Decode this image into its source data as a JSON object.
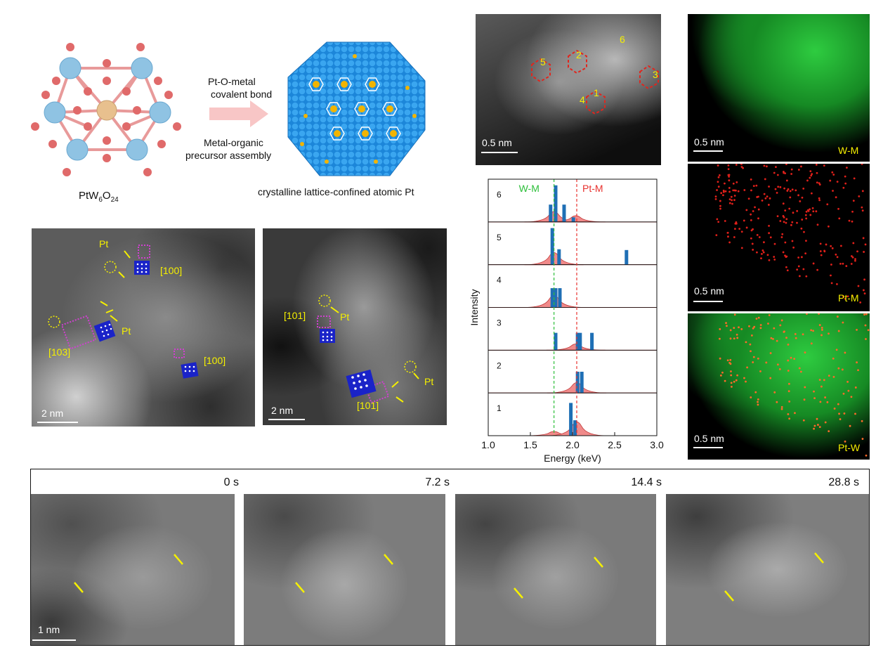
{
  "schematic": {
    "molecule_label_main": "PtW",
    "molecule_label_sub1": "6",
    "molecule_label_mid": "O",
    "molecule_label_sub2": "24",
    "arrow_top_line1": "Pt-O-metal",
    "arrow_top_line2": "covalent bond",
    "arrow_bottom_line1": "Metal-organic",
    "arrow_bottom_line2": "precursor assembly",
    "crystal_caption": "crystalline lattice-confined atomic Pt"
  },
  "haadf_left": {
    "pt_label_1": "Pt",
    "pt_label_2": "Pt",
    "zone_100_a": "[100]",
    "zone_103": "[103]",
    "zone_100_b": "[100]",
    "scale": "2 nm"
  },
  "haadf_mid": {
    "pt_label_1": "Pt",
    "pt_label_2": "Pt",
    "zone_101_a": "[101]",
    "zone_101_b": "[101]",
    "scale": "2 nm"
  },
  "stem_top": {
    "scale": "0.5 nm",
    "site_labels": [
      "1",
      "2",
      "3",
      "4",
      "5",
      "6"
    ]
  },
  "eds_maps": [
    {
      "label": "W-M",
      "scale": "0.5 nm"
    },
    {
      "label": "Pt-M",
      "scale": "0.5 nm"
    },
    {
      "label": "Pt-W",
      "scale": "0.5 nm"
    }
  ],
  "timelapse": {
    "times": [
      "0 s",
      "7.2 s",
      "14.4 s",
      "28.8 s"
    ],
    "scale": "1 nm"
  },
  "colors": {
    "wm_line": "#2dbf3a",
    "ptm_line": "#e8322f",
    "bar_fill": "#1f6fb5",
    "peak_fill": "#f08a8a",
    "annotation_yellow": "#f5f000",
    "lattice_magenta": "#d040d0",
    "lattice_blue": "#1a23c8"
  },
  "chart_data": {
    "type": "bar",
    "title": "",
    "xlabel": "Energy (keV)",
    "ylabel": "Intensity",
    "xlim": [
      1.0,
      3.0
    ],
    "xticks": [
      "1.0",
      "1.5",
      "2.0",
      "2.5",
      "3.0"
    ],
    "reference_lines": [
      {
        "name": "W-M",
        "x": 1.78
      },
      {
        "name": "Pt-M",
        "x": 2.05
      }
    ],
    "series": [
      {
        "name": "6",
        "bars": [
          [
            1.74,
            0.45
          ],
          [
            1.8,
            0.95
          ],
          [
            1.9,
            0.45
          ],
          [
            2.01,
            0.12
          ]
        ],
        "peaks": [
          [
            1.78,
            0.3
          ],
          [
            2.04,
            0.18
          ]
        ]
      },
      {
        "name": "5",
        "bars": [
          [
            1.76,
            0.95
          ],
          [
            1.84,
            0.4
          ],
          [
            2.64,
            0.38
          ]
        ],
        "peaks": [
          [
            1.78,
            0.35
          ]
        ]
      },
      {
        "name": "4",
        "bars": [
          [
            1.76,
            0.5
          ],
          [
            1.8,
            0.5
          ],
          [
            1.85,
            0.5
          ]
        ],
        "peaks": [
          [
            1.78,
            0.35
          ]
        ]
      },
      {
        "name": "3",
        "bars": [
          [
            1.8,
            0.45
          ],
          [
            2.06,
            0.45
          ],
          [
            2.09,
            0.45
          ],
          [
            2.23,
            0.45
          ]
        ],
        "peaks": [
          [
            2.04,
            0.18
          ]
        ]
      },
      {
        "name": "2",
        "bars": [
          [
            2.06,
            0.55
          ],
          [
            2.11,
            0.55
          ]
        ],
        "peaks": [
          [
            2.05,
            0.3
          ]
        ]
      },
      {
        "name": "1",
        "bars": [
          [
            1.98,
            0.85
          ],
          [
            2.03,
            0.4
          ]
        ],
        "peaks": [
          [
            1.78,
            0.12
          ],
          [
            2.05,
            0.4
          ]
        ]
      }
    ]
  }
}
